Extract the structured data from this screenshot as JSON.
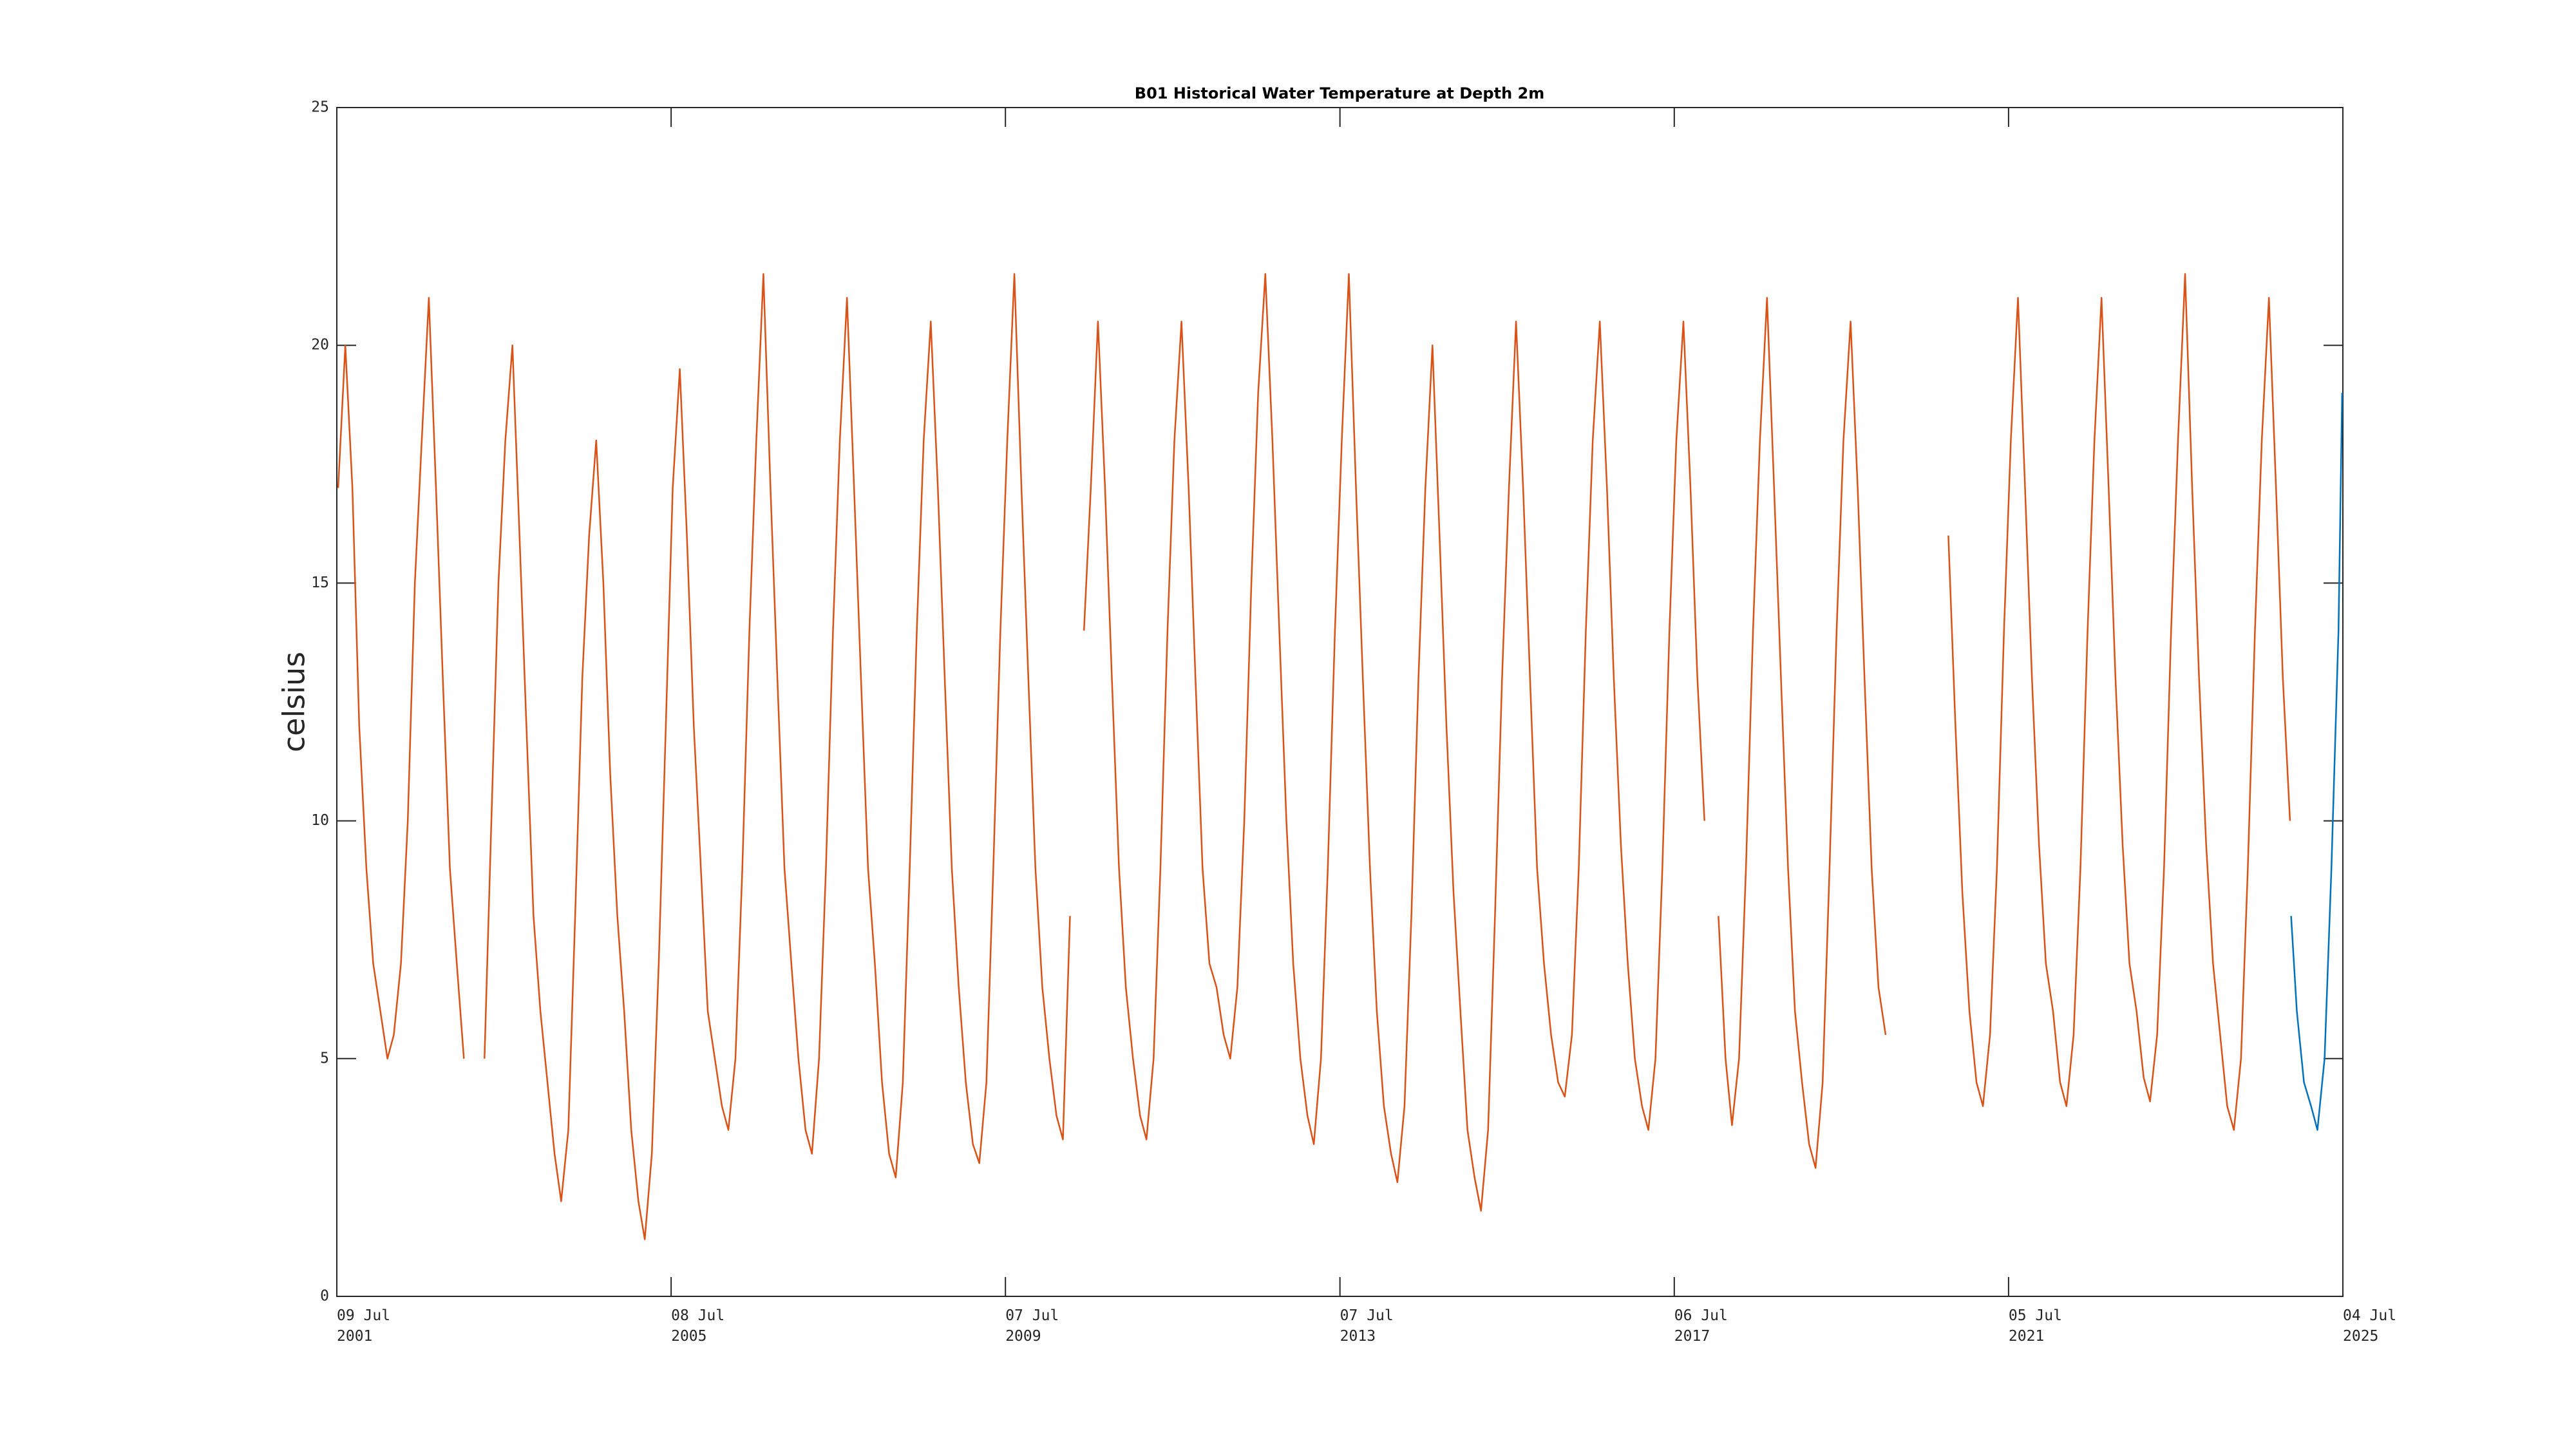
{
  "chart_data": {
    "type": "line",
    "title": "B01 Historical Water Temperature at Depth 2m",
    "y_label": "celsius",
    "xlim": [
      "2001-07-09",
      "2025-07-04"
    ],
    "xticks": [
      {
        "value": "2001-07-09",
        "label": [
          "09 Jul",
          "2001"
        ]
      },
      {
        "value": "2005-07-08",
        "label": [
          "08 Jul",
          "2005"
        ]
      },
      {
        "value": "2009-07-07",
        "label": [
          "07 Jul",
          "2009"
        ]
      },
      {
        "value": "2013-07-07",
        "label": [
          "07 Jul",
          "2013"
        ]
      },
      {
        "value": "2017-07-06",
        "label": [
          "06 Jul",
          "2017"
        ]
      },
      {
        "value": "2021-07-05",
        "label": [
          "05 Jul",
          "2021"
        ]
      },
      {
        "value": "2025-07-04",
        "label": [
          "04 Jul",
          "2025"
        ]
      }
    ],
    "ylim": [
      0,
      25
    ],
    "yticks": [
      0,
      5,
      10,
      15,
      20,
      25
    ],
    "grid": false,
    "series": [
      {
        "color": "#d95319",
        "x": [
          "2001-07-15",
          "2001-08-15",
          "2001-09-15",
          "2001-10-15",
          "2001-11-15",
          "2001-12-15",
          "2002-01-15",
          "2002-02-15",
          "2002-03-15",
          "2002-04-15",
          "2002-05-15",
          "2002-06-15",
          "2002-07-15",
          "2002-08-15",
          "2002-09-15",
          "2002-10-15",
          "2002-11-15",
          "2002-12-15",
          "2003-01-15",
          "2003-02-15",
          "2003-03-15",
          "2003-04-15",
          "2003-05-15",
          "2003-06-15",
          "2003-07-15",
          "2003-08-15",
          "2003-09-15",
          "2003-10-15",
          "2003-11-15",
          "2003-12-15",
          "2004-01-15",
          "2004-02-15",
          "2004-03-15",
          "2004-04-15",
          "2004-05-15",
          "2004-06-15",
          "2004-07-15",
          "2004-08-15",
          "2004-09-15",
          "2004-10-15",
          "2004-11-15",
          "2004-12-15",
          "2005-01-15",
          "2005-02-15",
          "2005-03-15",
          "2005-04-15",
          "2005-05-15",
          "2005-06-15",
          "2005-07-15",
          "2005-08-15",
          "2005-09-15",
          "2005-10-15",
          "2005-11-15",
          "2005-12-15",
          "2006-01-15",
          "2006-02-15",
          "2006-03-15",
          "2006-04-15",
          "2006-05-15",
          "2006-06-15",
          "2006-07-15",
          "2006-08-15",
          "2006-09-15",
          "2006-10-15",
          "2006-11-15",
          "2006-12-15",
          "2007-01-15",
          "2007-02-15",
          "2007-03-15",
          "2007-04-15",
          "2007-05-15",
          "2007-06-15",
          "2007-07-15",
          "2007-08-15",
          "2007-09-15",
          "2007-10-15",
          "2007-11-15",
          "2007-12-15",
          "2008-01-15",
          "2008-02-15",
          "2008-03-15",
          "2008-04-15",
          "2008-05-15",
          "2008-06-15",
          "2008-07-15",
          "2008-08-15",
          "2008-09-15",
          "2008-10-15",
          "2008-11-15",
          "2008-12-15",
          "2009-01-15",
          "2009-02-15",
          "2009-03-15",
          "2009-04-15",
          "2009-05-15",
          "2009-06-15",
          "2009-07-15",
          "2009-08-15",
          "2009-09-15",
          "2009-10-15",
          "2009-11-15",
          "2009-12-15",
          "2010-01-15",
          "2010-02-15",
          "2010-03-15",
          "2010-04-15",
          "2010-05-15",
          "2010-06-15",
          "2010-07-15",
          "2010-08-15",
          "2010-09-15",
          "2010-10-15",
          "2010-11-15",
          "2010-12-15",
          "2011-01-15",
          "2011-02-15",
          "2011-03-15",
          "2011-04-15",
          "2011-05-15",
          "2011-06-15",
          "2011-07-15",
          "2011-08-15",
          "2011-09-15",
          "2011-10-15",
          "2011-11-15",
          "2011-12-15",
          "2012-01-15",
          "2012-02-15",
          "2012-03-15",
          "2012-04-15",
          "2012-05-15",
          "2012-06-15",
          "2012-07-15",
          "2012-08-15",
          "2012-09-15",
          "2012-10-15",
          "2012-11-15",
          "2012-12-15",
          "2013-01-15",
          "2013-02-15",
          "2013-03-15",
          "2013-04-15",
          "2013-05-15",
          "2013-06-15",
          "2013-07-15",
          "2013-08-15",
          "2013-09-15",
          "2013-10-15",
          "2013-11-15",
          "2013-12-15",
          "2014-01-15",
          "2014-02-15",
          "2014-03-15",
          "2014-04-15",
          "2014-05-15",
          "2014-06-15",
          "2014-07-15",
          "2014-08-15",
          "2014-09-15",
          "2014-10-15",
          "2014-11-15",
          "2014-12-15",
          "2015-01-15",
          "2015-02-15",
          "2015-03-15",
          "2015-04-15",
          "2015-05-15",
          "2015-06-15",
          "2015-07-15",
          "2015-08-15",
          "2015-09-15",
          "2015-10-15",
          "2015-11-15",
          "2015-12-15",
          "2016-01-15",
          "2016-02-15",
          "2016-03-15",
          "2016-04-15",
          "2016-05-15",
          "2016-06-15",
          "2016-07-15",
          "2016-08-15",
          "2016-09-15",
          "2016-10-15",
          "2016-11-15",
          "2016-12-15",
          "2017-01-15",
          "2017-02-15",
          "2017-03-15",
          "2017-04-15",
          "2017-05-15",
          "2017-06-15",
          "2017-07-15",
          "2017-08-15",
          "2017-09-15",
          "2017-10-15",
          "2017-11-15",
          "2017-12-15",
          "2018-01-15",
          "2018-02-15",
          "2018-03-15",
          "2018-04-15",
          "2018-05-15",
          "2018-06-15",
          "2018-07-15",
          "2018-08-15",
          "2018-09-15",
          "2018-10-15",
          "2018-11-15",
          "2018-12-15",
          "2019-01-15",
          "2019-02-15",
          "2019-03-15",
          "2019-04-15",
          "2019-05-15",
          "2019-06-15",
          "2019-07-15",
          "2019-08-15",
          "2019-09-15",
          "2019-10-15",
          "2019-11-15",
          "2019-12-15",
          "2020-01-15",
          "2020-02-15",
          "2020-03-15",
          "2020-04-15",
          "2020-05-15",
          "2020-06-15",
          "2020-07-15",
          "2020-08-15",
          "2020-09-15",
          "2020-10-15",
          "2020-11-15",
          "2020-12-15",
          "2021-01-15",
          "2021-02-15",
          "2021-03-15",
          "2021-04-15",
          "2021-05-15",
          "2021-06-15",
          "2021-07-15",
          "2021-08-15",
          "2021-09-15",
          "2021-10-15",
          "2021-11-15",
          "2021-12-15",
          "2022-01-15",
          "2022-02-15",
          "2022-03-15",
          "2022-04-15",
          "2022-05-15",
          "2022-06-15",
          "2022-07-15",
          "2022-08-15",
          "2022-09-15",
          "2022-10-15",
          "2022-11-15",
          "2022-12-15",
          "2023-01-15",
          "2023-02-15",
          "2023-03-15",
          "2023-04-15",
          "2023-05-15",
          "2023-06-15",
          "2023-07-15",
          "2023-08-15",
          "2023-09-15",
          "2023-10-15",
          "2023-11-15",
          "2023-12-15",
          "2024-01-15",
          "2024-02-15",
          "2024-03-15",
          "2024-04-15",
          "2024-05-15",
          "2024-06-15",
          "2024-07-15",
          "2024-08-15",
          "2024-09-15",
          "2024-10-15",
          "2024-11-15"
        ],
        "values": [
          17,
          20,
          17,
          12,
          9,
          7,
          6,
          5,
          5.5,
          7,
          10,
          15,
          18,
          21,
          17,
          13,
          9,
          7,
          5,
          null,
          null,
          5,
          10,
          15,
          18,
          20,
          16,
          12,
          8,
          6,
          4.5,
          3,
          2,
          3.5,
          8,
          13,
          16,
          18,
          15,
          11,
          8,
          6,
          3.5,
          2,
          1.2,
          3,
          7,
          12,
          17,
          19.5,
          16,
          12,
          9,
          6,
          5,
          4,
          3.5,
          5,
          9,
          14,
          18,
          21.5,
          17,
          13,
          9,
          7,
          5,
          3.5,
          3,
          5,
          9,
          14,
          18,
          21,
          17,
          13,
          9,
          7,
          4.5,
          3,
          2.5,
          4.5,
          9,
          14,
          18,
          20.5,
          17,
          13,
          9,
          6.5,
          4.5,
          3.2,
          2.8,
          4.5,
          9,
          14,
          18,
          21.5,
          17,
          13,
          9,
          6.5,
          5,
          3.8,
          3.3,
          8,
          null,
          14,
          17,
          20.5,
          17,
          13,
          9,
          6.5,
          5,
          3.8,
          3.3,
          5,
          9,
          14,
          18,
          20.5,
          17,
          13,
          9,
          7,
          6.5,
          5.5,
          5,
          6.5,
          10,
          15,
          19,
          21.5,
          18,
          14,
          10,
          7,
          5,
          3.8,
          3.2,
          5,
          9,
          14,
          18,
          21.5,
          17,
          13,
          9,
          6,
          4,
          3,
          2.4,
          4,
          8,
          13,
          17,
          20,
          16,
          12,
          8.5,
          6,
          3.5,
          2.5,
          1.8,
          3.5,
          8,
          13,
          17,
          20.5,
          17,
          13,
          9,
          7,
          5.5,
          4.5,
          4.2,
          5.5,
          9,
          14,
          18,
          20.5,
          17,
          13,
          9.5,
          7,
          5,
          4,
          3.5,
          5,
          9,
          14,
          18,
          20.5,
          17,
          13,
          10,
          null,
          8,
          5,
          3.6,
          5,
          9,
          14,
          18,
          21,
          17,
          13,
          9,
          6,
          4.5,
          3.2,
          2.7,
          4.5,
          9,
          14,
          18,
          20.5,
          17,
          13,
          9,
          6.5,
          5.5,
          null,
          null,
          null,
          null,
          null,
          null,
          null,
          null,
          16,
          12,
          8.5,
          6,
          4.5,
          4,
          5.5,
          9,
          14,
          18,
          21,
          17,
          13,
          9.5,
          7,
          6,
          4.5,
          4,
          5.5,
          9,
          14,
          18,
          21,
          17,
          13,
          9.5,
          7,
          6,
          4.6,
          4.1,
          5.5,
          9,
          14,
          18,
          21.5,
          17,
          13,
          9.5,
          7,
          5.5,
          4,
          3.5,
          5,
          9,
          14,
          18,
          21,
          17,
          13,
          10
        ]
      },
      {
        "color": "#0072bd",
        "x": [
          "2024-11-20",
          "2024-12-15",
          "2025-01-15",
          "2025-02-15",
          "2025-03-15",
          "2025-04-15",
          "2025-05-15",
          "2025-06-15",
          "2025-07-01"
        ],
        "values": [
          8,
          6,
          4.5,
          4,
          3.5,
          5,
          9,
          14,
          19
        ]
      }
    ]
  }
}
